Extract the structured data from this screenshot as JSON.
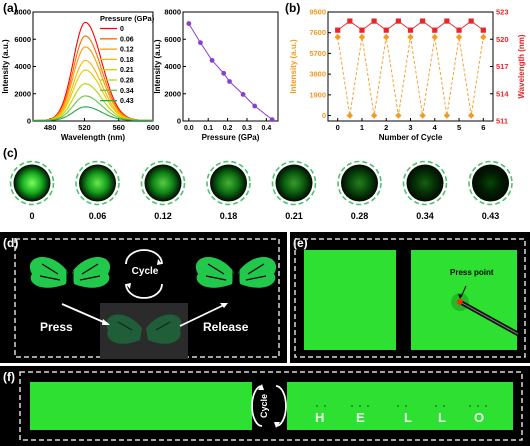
{
  "panels": {
    "a": "(a)",
    "b": "(b)",
    "c": "(c)",
    "d": "(d)",
    "e": "(e)",
    "f": "(f)"
  },
  "chart_data": [
    {
      "type": "line",
      "id": "a-spectra",
      "xlabel": "Wavelength (nm)",
      "ylabel": "Intensity (a.u.)",
      "xlim": [
        460,
        600
      ],
      "ylim": [
        0,
        8000
      ],
      "xticks": [
        480,
        520,
        560,
        600
      ],
      "yticks": [
        0,
        2000,
        4000,
        6000,
        8000
      ],
      "legend_title": "Pressure (GPa)",
      "peak_wavelength": 521,
      "series": [
        {
          "name": "0",
          "color": "#ff0000",
          "peak": 7200
        },
        {
          "name": "0.06",
          "color": "#ff6a00",
          "peak": 6200
        },
        {
          "name": "0.12",
          "color": "#ff9a00",
          "peak": 5400
        },
        {
          "name": "0.18",
          "color": "#ffb300",
          "peak": 4400
        },
        {
          "name": "0.21",
          "color": "#ddd000",
          "peak": 3700
        },
        {
          "name": "0.28",
          "color": "#b8d400",
          "peak": 2700
        },
        {
          "name": "0.34",
          "color": "#6cc63c",
          "peak": 1800
        },
        {
          "name": "0.43",
          "color": "#22a84a",
          "peak": 1000
        }
      ]
    },
    {
      "type": "scatter",
      "id": "a-intensity-pressure",
      "xlabel": "Pressure (GPa)",
      "ylabel": "Intensity (a.u.)",
      "xlim": [
        -0.03,
        0.46
      ],
      "ylim": [
        0,
        8000
      ],
      "xticks": [
        0.0,
        0.1,
        0.2,
        0.3,
        0.4
      ],
      "yticks": [
        0,
        2000,
        4000,
        6000,
        8000
      ],
      "color": "#8a3fd1",
      "x": [
        0,
        0.06,
        0.12,
        0.18,
        0.21,
        0.28,
        0.34,
        0.43
      ],
      "y": [
        7150,
        5750,
        4450,
        3500,
        2900,
        1950,
        1100,
        100
      ]
    },
    {
      "type": "line",
      "id": "b-cycle",
      "xlabel": "Number of Cycle",
      "ylabel": "Intensity (a.u.)",
      "ylabel2": "Wavelength (nm)",
      "xlim": [
        -0.4,
        6.4
      ],
      "ylim": [
        -500,
        9500
      ],
      "ylim2": [
        511,
        523
      ],
      "xticks": [
        0,
        1,
        2,
        3,
        4,
        5,
        6
      ],
      "yticks": [
        0,
        1900,
        3800,
        5700,
        7600,
        9500
      ],
      "yticks2": [
        511,
        514,
        517,
        520,
        523
      ],
      "series": [
        {
          "name": "Intensity",
          "color": "#f39a1f",
          "x": [
            0,
            0.5,
            1,
            1.5,
            2,
            2.5,
            3,
            3.5,
            4,
            4.5,
            5,
            5.5,
            6
          ],
          "values": [
            7200,
            0,
            7200,
            0,
            7200,
            0,
            7200,
            0,
            7200,
            0,
            7200,
            0,
            7200
          ]
        },
        {
          "name": "Wavelength",
          "color": "#e8262a",
          "x": [
            0,
            0.5,
            1,
            1.5,
            2,
            2.5,
            3,
            3.5,
            4,
            4.5,
            5,
            5.5,
            6
          ],
          "values": [
            521.0,
            522.0,
            521.0,
            522.0,
            521.0,
            522.0,
            521.0,
            522.0,
            521.0,
            522.0,
            521.0,
            522.0,
            521.0
          ]
        }
      ]
    }
  ],
  "circles": [
    {
      "label": "0",
      "level": 1.0
    },
    {
      "label": "0.06",
      "level": 0.88
    },
    {
      "label": "0.12",
      "level": 0.74
    },
    {
      "label": "0.18",
      "level": 0.6
    },
    {
      "label": "0.21",
      "level": 0.48
    },
    {
      "label": "0.28",
      "level": 0.33
    },
    {
      "label": "0.34",
      "level": 0.18
    },
    {
      "label": "0.43",
      "level": 0.05
    }
  ],
  "d": {
    "cycle": "Cycle",
    "press": "Press",
    "release": "Release"
  },
  "e": {
    "press_point": "Press point"
  },
  "f": {
    "cycle": "Cycle",
    "letters": [
      "H",
      "E",
      "L",
      "L",
      "O"
    ]
  }
}
